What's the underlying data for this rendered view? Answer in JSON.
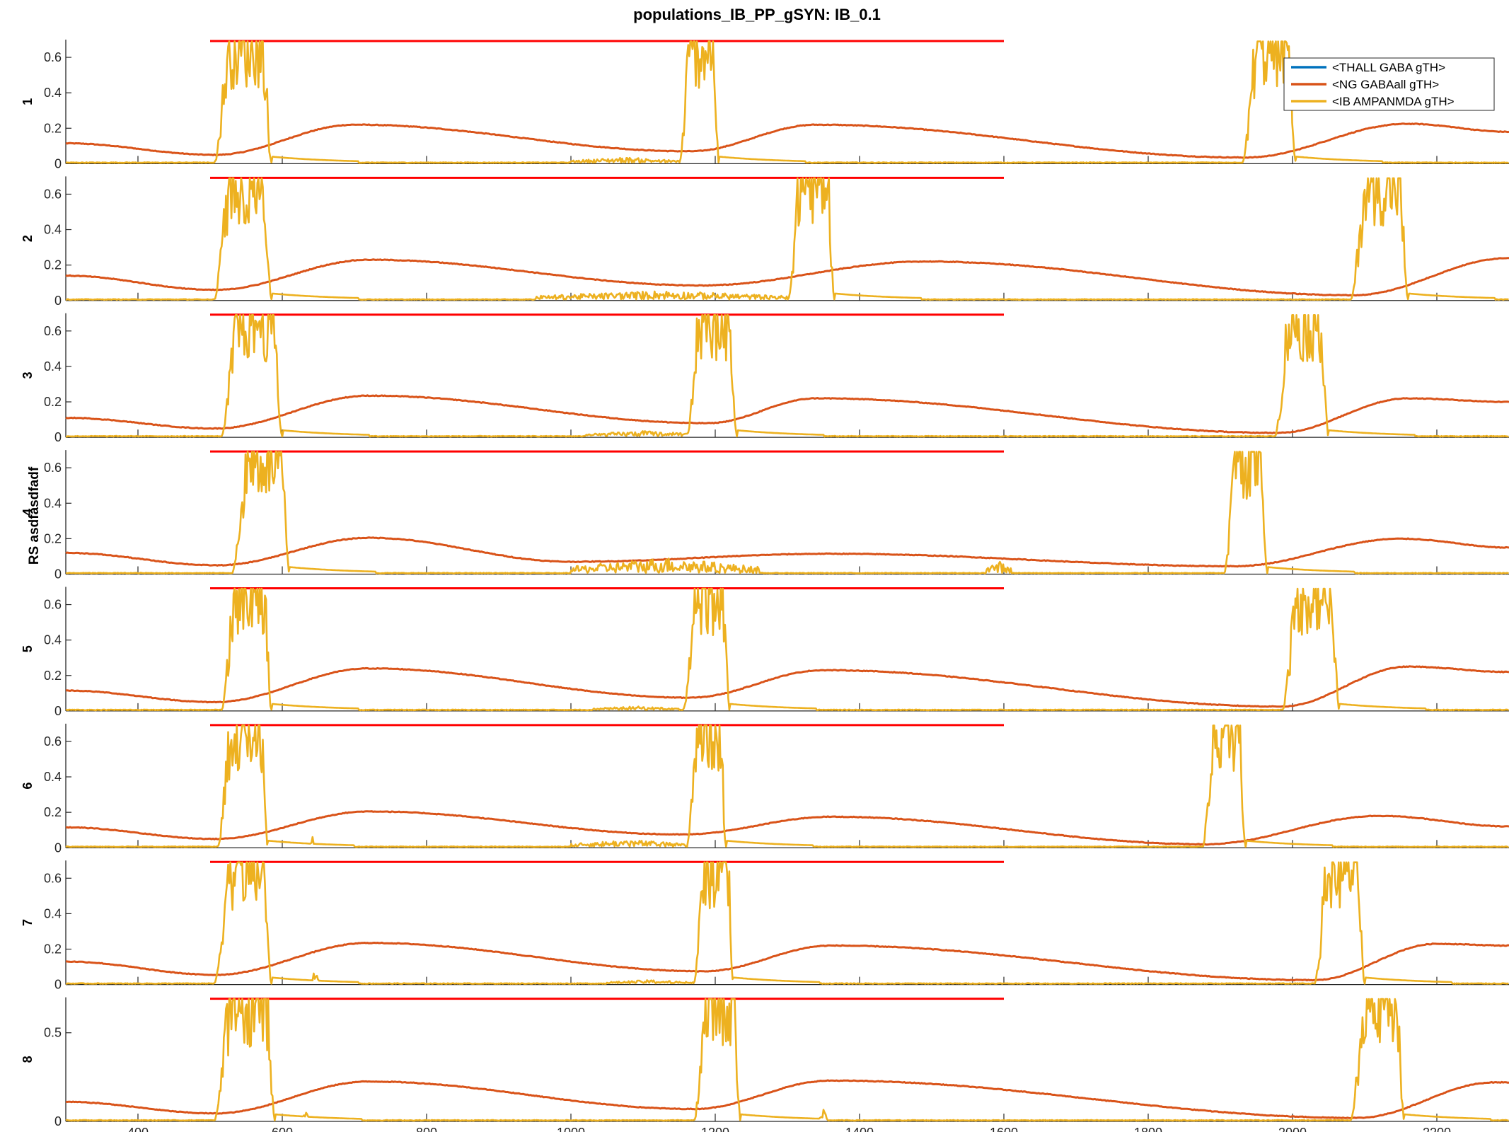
{
  "figure": {
    "title": "populations_IB_PP_gSYN: IB_0.1",
    "ylabel": "RS asdfasdfadf",
    "background": "#ffffff"
  },
  "chart_data": {
    "type": "line",
    "title": "populations_IB_PP_gSYN: IB_0.1",
    "ylabel": "RS asdfasdfadf",
    "xlim": [
      300,
      2300
    ],
    "xticks": [
      400,
      600,
      800,
      1000,
      1200,
      1400,
      1600,
      1800,
      2000,
      2200
    ],
    "grid": false,
    "legend": {
      "placement": "top-right",
      "entries": [
        "<THALL GABA gTH>",
        "<NG GABAall gTH>",
        "<IB AMPANMDA gTH>"
      ]
    },
    "colors": {
      "thall": "#0072BD",
      "ng": "#D95319",
      "ib": "#EDB120",
      "stim": "#FF0000",
      "axis": "#262626"
    },
    "stimulus": {
      "x_start": 500,
      "x_end": 1600,
      "level": "top of y range"
    },
    "panels": [
      {
        "label": "1",
        "ylim": [
          0,
          0.7
        ],
        "yticks": [
          0,
          0.2,
          0.4,
          0.6
        ],
        "ng": {
          "t0": 0.115,
          "troughs": [
            [
              507,
              0.05
            ],
            [
              1165,
              0.07
            ],
            [
              1935,
              0.035
            ]
          ],
          "peaks": [
            [
              700,
              0.22
            ],
            [
              1340,
              0.22
            ],
            [
              2160,
              0.225
            ]
          ],
          "tend": 0.18
        },
        "ib_bursts": [
          [
            505,
            585
          ],
          [
            1150,
            1205
          ],
          [
            1930,
            2005
          ]
        ],
        "ib_noise": [
          [
            1000,
            1150,
            0.03
          ]
        ]
      },
      {
        "label": "2",
        "ylim": [
          0,
          0.7
        ],
        "yticks": [
          0,
          0.2,
          0.4,
          0.6
        ],
        "ng": {
          "t0": 0.14,
          "troughs": [
            [
              507,
              0.06
            ],
            [
              1180,
              0.085
            ],
            [
              2085,
              0.03
            ]
          ],
          "peaks": [
            [
              720,
              0.23
            ],
            [
              1490,
              0.22
            ]
          ],
          "tend": 0.24
        },
        "ib_bursts": [
          [
            505,
            585
          ],
          [
            1300,
            1365
          ],
          [
            2080,
            2160
          ]
        ],
        "ib_noise": [
          [
            950,
            1300,
            0.05
          ]
        ]
      },
      {
        "label": "3",
        "ylim": [
          0,
          0.7
        ],
        "yticks": [
          0,
          0.2,
          0.4,
          0.6
        ],
        "ng": {
          "t0": 0.11,
          "troughs": [
            [
              507,
              0.05
            ],
            [
              1190,
              0.08
            ],
            [
              1980,
              0.025
            ]
          ],
          "peaks": [
            [
              720,
              0.235
            ],
            [
              1340,
              0.22
            ],
            [
              2160,
              0.22
            ]
          ],
          "tend": 0.2
        },
        "ib_bursts": [
          [
            515,
            600
          ],
          [
            1160,
            1230
          ],
          [
            1975,
            2050
          ]
        ],
        "ib_noise": [
          [
            1020,
            1180,
            0.03
          ]
        ]
      },
      {
        "label": "4",
        "ylim": [
          0,
          0.7
        ],
        "yticks": [
          0,
          0.2,
          0.4,
          0.6
        ],
        "ng": {
          "t0": 0.12,
          "troughs": [
            [
              510,
              0.05
            ],
            [
              1000,
              0.07
            ],
            [
              1920,
              0.045
            ]
          ],
          "peaks": [
            [
              720,
              0.205
            ],
            [
              1360,
              0.115
            ],
            [
              2150,
              0.2
            ]
          ],
          "tend": 0.15
        },
        "ib_bursts": [
          [
            530,
            610
          ],
          [
            1905,
            1965
          ]
        ],
        "ib_noise": [
          [
            1000,
            1260,
            0.09
          ],
          [
            1575,
            1610,
            0.07
          ]
        ]
      },
      {
        "label": "5",
        "ylim": [
          0,
          0.7
        ],
        "yticks": [
          0,
          0.2,
          0.4,
          0.6
        ],
        "ng": {
          "t0": 0.115,
          "troughs": [
            [
              507,
              0.05
            ],
            [
              1165,
              0.075
            ],
            [
              1985,
              0.025
            ]
          ],
          "peaks": [
            [
              720,
              0.24
            ],
            [
              1350,
              0.23
            ],
            [
              2160,
              0.25
            ]
          ],
          "tend": 0.22
        },
        "ib_bursts": [
          [
            515,
            585
          ],
          [
            1155,
            1220
          ],
          [
            1985,
            2065
          ]
        ],
        "ib_noise": [
          [
            1030,
            1150,
            0.02
          ]
        ]
      },
      {
        "label": "6",
        "ylim": [
          0,
          0.7
        ],
        "yticks": [
          0,
          0.2,
          0.4,
          0.6
        ],
        "ng": {
          "t0": 0.115,
          "troughs": [
            [
              507,
              0.05
            ],
            [
              1155,
              0.075
            ],
            [
              1880,
              0.02
            ]
          ],
          "peaks": [
            [
              720,
              0.205
            ],
            [
              1360,
              0.175
            ],
            [
              2120,
              0.18
            ]
          ],
          "tend": 0.12
        },
        "ib_bursts": [
          [
            510,
            580
          ],
          [
            1160,
            1215
          ],
          [
            1875,
            1935
          ]
        ],
        "ib_noise": [
          [
            1000,
            1160,
            0.04
          ],
          [
            640,
            645,
            0.08
          ]
        ]
      },
      {
        "label": "7",
        "ylim": [
          0,
          0.7
        ],
        "yticks": [
          0,
          0.2,
          0.4,
          0.6
        ],
        "ng": {
          "t0": 0.13,
          "troughs": [
            [
              507,
              0.055
            ],
            [
              1185,
              0.075
            ],
            [
              2030,
              0.025
            ]
          ],
          "peaks": [
            [
              720,
              0.235
            ],
            [
              1360,
              0.22
            ],
            [
              2200,
              0.23
            ]
          ],
          "tend": 0.22
        },
        "ib_bursts": [
          [
            505,
            585
          ],
          [
            1170,
            1225
          ],
          [
            2030,
            2100
          ]
        ],
        "ib_noise": [
          [
            640,
            650,
            0.07
          ],
          [
            1050,
            1170,
            0.02
          ]
        ]
      },
      {
        "label": "8",
        "ylim": [
          0,
          0.7
        ],
        "yticks": [
          0,
          0.5
        ],
        "ng": {
          "t0": 0.11,
          "troughs": [
            [
              507,
              0.045
            ],
            [
              1170,
              0.07
            ],
            [
              2090,
              0.02
            ]
          ],
          "peaks": [
            [
              720,
              0.225
            ],
            [
              1360,
              0.23
            ],
            [
              2280,
              0.22
            ]
          ],
          "tend": 0.22
        },
        "ib_bursts": [
          [
            505,
            590
          ],
          [
            1170,
            1235
          ],
          [
            2080,
            2155
          ]
        ],
        "ib_noise": [
          [
            630,
            635,
            0.12
          ],
          [
            1345,
            1355,
            0.06
          ]
        ]
      }
    ]
  }
}
